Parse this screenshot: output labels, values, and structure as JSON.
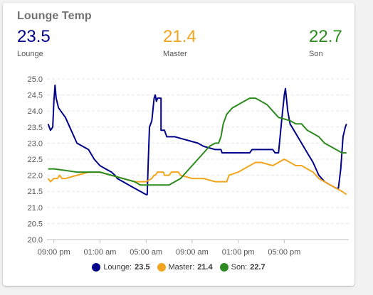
{
  "card": {
    "title": "Lounge Temp"
  },
  "stats": [
    {
      "value": "23.5",
      "label": "Lounge",
      "color": "#00008b"
    },
    {
      "value": "21.4",
      "label": "Master",
      "color": "#f2a51f"
    },
    {
      "value": "22.7",
      "label": "Son",
      "color": "#2c8a1e"
    }
  ],
  "legend": [
    {
      "label": "Lounge:",
      "value": "23.5",
      "color": "#00008b"
    },
    {
      "label": "Master:",
      "value": "21.4",
      "color": "#f2a51f"
    },
    {
      "label": "Son:",
      "value": "22.7",
      "color": "#2c8a1e"
    }
  ],
  "chart_data": {
    "type": "line",
    "title": "",
    "xlabel": "",
    "ylabel": "",
    "x_hour_range": [
      20.5,
      21.6
    ],
    "xticks": [
      {
        "h": 0,
        "label": "09:00 pm"
      },
      {
        "h": 4,
        "label": "01:00 am"
      },
      {
        "h": 8,
        "label": "05:00 am"
      },
      {
        "h": 12,
        "label": "09:00 am"
      },
      {
        "h": 16,
        "label": "01:00 pm"
      },
      {
        "h": 20,
        "label": "05:00 pm"
      }
    ],
    "ylim": [
      20.0,
      25.0
    ],
    "yticks": [
      "20.0",
      "20.5",
      "21.0",
      "21.5",
      "22.0",
      "22.5",
      "23.0",
      "23.5",
      "24.0",
      "24.5",
      "25.0"
    ],
    "grid": true,
    "legend_position": "bottom",
    "series": [
      {
        "name": "Lounge",
        "color": "#00008b",
        "points": [
          [
            -0.5,
            23.6
          ],
          [
            -0.3,
            23.4
          ],
          [
            -0.1,
            23.5
          ],
          [
            0.0,
            24.3
          ],
          [
            0.1,
            24.8
          ],
          [
            0.2,
            24.4
          ],
          [
            0.4,
            24.1
          ],
          [
            0.6,
            24.0
          ],
          [
            1.0,
            23.8
          ],
          [
            1.5,
            23.4
          ],
          [
            2.0,
            23.0
          ],
          [
            2.5,
            22.9
          ],
          [
            3.0,
            22.8
          ],
          [
            3.5,
            22.5
          ],
          [
            4.0,
            22.3
          ],
          [
            4.5,
            22.2
          ],
          [
            5.0,
            22.1
          ],
          [
            5.3,
            22.0
          ],
          [
            5.5,
            21.9
          ],
          [
            6.0,
            21.8
          ],
          [
            6.5,
            21.7
          ],
          [
            7.0,
            21.6
          ],
          [
            7.5,
            21.5
          ],
          [
            8.0,
            21.4
          ],
          [
            8.1,
            21.4
          ],
          [
            8.2,
            22.5
          ],
          [
            8.3,
            23.5
          ],
          [
            8.5,
            23.7
          ],
          [
            8.7,
            24.4
          ],
          [
            8.8,
            24.5
          ],
          [
            8.9,
            24.3
          ],
          [
            9.0,
            24.4
          ],
          [
            9.1,
            24.4
          ],
          [
            9.3,
            24.4
          ],
          [
            9.3,
            23.4
          ],
          [
            9.6,
            23.4
          ],
          [
            9.8,
            23.2
          ],
          [
            10.5,
            23.2
          ],
          [
            11.5,
            23.1
          ],
          [
            12.5,
            23.0
          ],
          [
            13.0,
            22.9
          ],
          [
            14.0,
            22.8
          ],
          [
            14.5,
            22.8
          ],
          [
            14.6,
            22.7
          ],
          [
            15.5,
            22.7
          ],
          [
            16.5,
            22.7
          ],
          [
            17.0,
            22.7
          ],
          [
            17.2,
            22.8
          ],
          [
            18.0,
            22.8
          ],
          [
            18.5,
            22.8
          ],
          [
            19.0,
            22.8
          ],
          [
            19.2,
            22.7
          ],
          [
            19.5,
            22.7
          ],
          [
            19.8,
            23.8
          ],
          [
            20.0,
            24.5
          ],
          [
            20.1,
            24.7
          ],
          [
            20.3,
            24.0
          ],
          [
            20.5,
            23.6
          ],
          [
            21.0,
            23.3
          ],
          [
            21.5,
            23.0
          ],
          [
            22.0,
            22.7
          ],
          [
            22.5,
            22.4
          ],
          [
            23.0,
            22.0
          ],
          [
            23.5,
            21.8
          ],
          [
            24.0,
            21.7
          ],
          [
            24.5,
            21.6
          ],
          [
            24.7,
            21.6
          ],
          [
            24.9,
            22.2
          ],
          [
            25.1,
            23.2
          ],
          [
            25.3,
            23.5
          ],
          [
            25.4,
            23.6
          ]
        ]
      },
      {
        "name": "Master",
        "color": "#f2a51f",
        "points": [
          [
            -0.5,
            21.9
          ],
          [
            -0.3,
            21.8
          ],
          [
            0.0,
            21.9
          ],
          [
            0.3,
            21.9
          ],
          [
            0.5,
            22.0
          ],
          [
            0.7,
            21.9
          ],
          [
            1.0,
            21.9
          ],
          [
            2.0,
            22.0
          ],
          [
            3.0,
            22.1
          ],
          [
            4.0,
            22.1
          ],
          [
            5.0,
            22.0
          ],
          [
            6.0,
            21.9
          ],
          [
            7.0,
            21.8
          ],
          [
            8.0,
            21.8
          ],
          [
            8.5,
            21.9
          ],
          [
            8.7,
            22.0
          ],
          [
            8.8,
            22.0
          ],
          [
            9.0,
            22.1
          ],
          [
            9.5,
            22.1
          ],
          [
            9.6,
            22.0
          ],
          [
            10.0,
            22.0
          ],
          [
            10.2,
            22.1
          ],
          [
            10.8,
            22.1
          ],
          [
            11.0,
            22.0
          ],
          [
            12.0,
            21.9
          ],
          [
            13.0,
            21.9
          ],
          [
            14.0,
            21.8
          ],
          [
            15.0,
            21.8
          ],
          [
            15.2,
            22.0
          ],
          [
            16.0,
            22.1
          ],
          [
            16.5,
            22.2
          ],
          [
            17.0,
            22.3
          ],
          [
            17.5,
            22.4
          ],
          [
            18.0,
            22.4
          ],
          [
            19.0,
            22.3
          ],
          [
            19.5,
            22.4
          ],
          [
            20.0,
            22.5
          ],
          [
            20.5,
            22.4
          ],
          [
            21.0,
            22.3
          ],
          [
            21.5,
            22.3
          ],
          [
            22.0,
            22.2
          ],
          [
            22.5,
            22.1
          ],
          [
            23.0,
            21.9
          ],
          [
            23.5,
            21.8
          ],
          [
            24.0,
            21.7
          ],
          [
            24.5,
            21.6
          ],
          [
            25.0,
            21.5
          ],
          [
            25.4,
            21.4
          ]
        ]
      },
      {
        "name": "Son",
        "color": "#2c8a1e",
        "points": [
          [
            -0.5,
            22.2
          ],
          [
            0.0,
            22.2
          ],
          [
            1.0,
            22.15
          ],
          [
            2.0,
            22.1
          ],
          [
            3.0,
            22.1
          ],
          [
            4.0,
            22.1
          ],
          [
            5.0,
            22.0
          ],
          [
            6.0,
            21.9
          ],
          [
            7.0,
            21.8
          ],
          [
            7.5,
            21.7
          ],
          [
            8.0,
            21.7
          ],
          [
            9.0,
            21.7
          ],
          [
            10.0,
            21.7
          ],
          [
            11.0,
            21.9
          ],
          [
            12.0,
            22.3
          ],
          [
            13.0,
            22.7
          ],
          [
            13.5,
            22.9
          ],
          [
            14.0,
            23.0
          ],
          [
            14.3,
            23.0
          ],
          [
            14.5,
            23.2
          ],
          [
            14.7,
            23.6
          ],
          [
            15.0,
            23.9
          ],
          [
            15.5,
            24.1
          ],
          [
            16.0,
            24.2
          ],
          [
            16.5,
            24.3
          ],
          [
            17.0,
            24.4
          ],
          [
            17.5,
            24.4
          ],
          [
            18.0,
            24.3
          ],
          [
            18.5,
            24.2
          ],
          [
            19.0,
            24.0
          ],
          [
            19.5,
            23.8
          ],
          [
            20.0,
            23.75
          ],
          [
            20.5,
            23.7
          ],
          [
            21.0,
            23.6
          ],
          [
            21.5,
            23.6
          ],
          [
            22.0,
            23.4
          ],
          [
            22.5,
            23.3
          ],
          [
            23.0,
            23.2
          ],
          [
            23.5,
            23.0
          ],
          [
            24.0,
            22.9
          ],
          [
            24.5,
            22.8
          ],
          [
            25.0,
            22.7
          ],
          [
            25.4,
            22.7
          ]
        ]
      }
    ]
  }
}
